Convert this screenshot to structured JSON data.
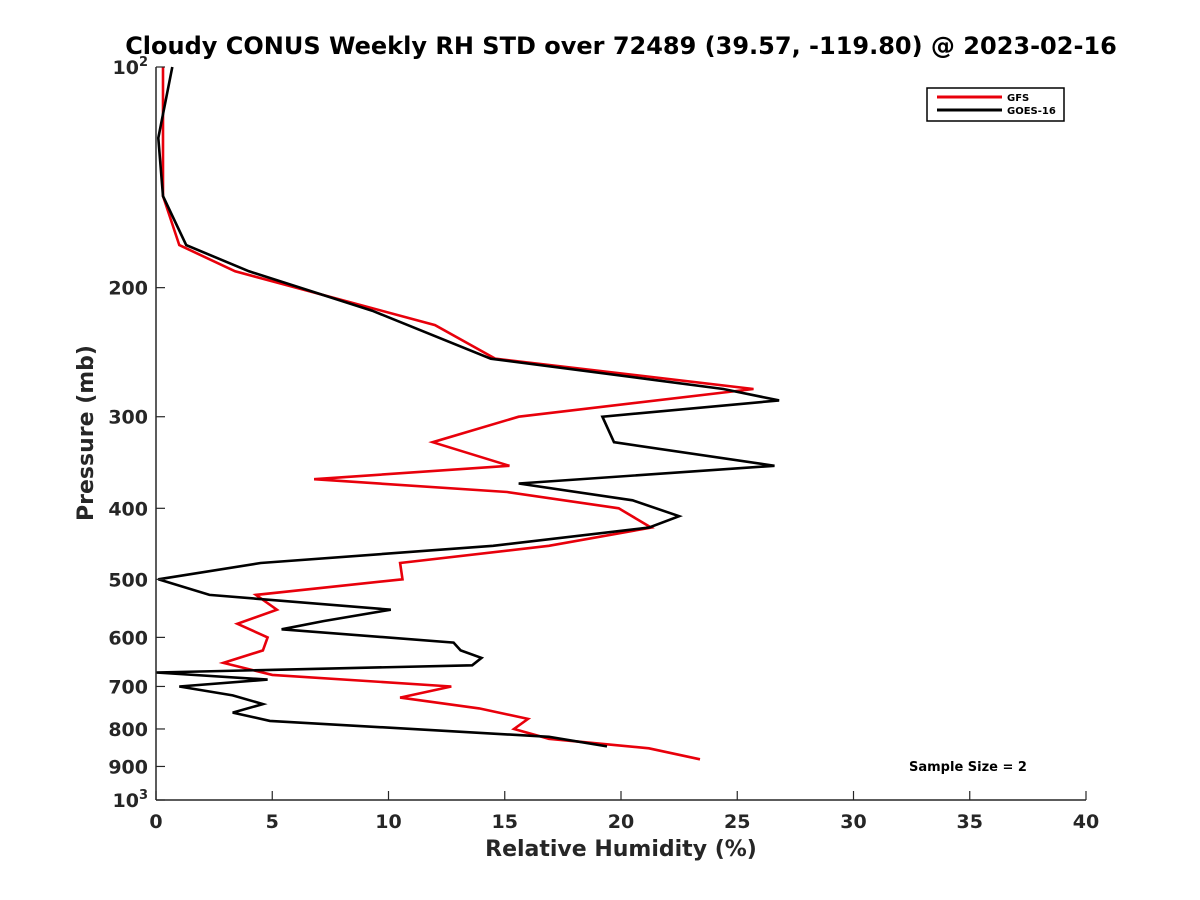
{
  "chart_data": {
    "type": "line",
    "title": "Cloudy CONUS Weekly RH STD over 72489 (39.57, -119.80) @ 2023-02-16",
    "xlabel": "Relative Humidity (%)",
    "ylabel": "Pressure (mb)",
    "xlim": [
      0,
      40
    ],
    "ylim": [
      100,
      1000
    ],
    "yscale": "log",
    "y_reversed": true,
    "grid": false,
    "legend_position": "top-right",
    "x_ticks": [
      0,
      5,
      10,
      15,
      20,
      25,
      30,
      35,
      40
    ],
    "y_ticks": [
      {
        "value": 100,
        "base": "10",
        "exp": "2"
      },
      {
        "value": 200,
        "label": "200"
      },
      {
        "value": 300,
        "label": "300"
      },
      {
        "value": 400,
        "label": "400"
      },
      {
        "value": 500,
        "label": "500"
      },
      {
        "value": 600,
        "label": "600"
      },
      {
        "value": 700,
        "label": "700"
      },
      {
        "value": 800,
        "label": "800"
      },
      {
        "value": 900,
        "label": "900"
      },
      {
        "value": 1000,
        "base": "10",
        "exp": "3"
      }
    ],
    "annotation": "Sample Size = 2",
    "series": [
      {
        "name": "GFS",
        "color": "#e8000b",
        "points": [
          [
            0.3,
            100
          ],
          [
            0.3,
            125
          ],
          [
            0.3,
            150
          ],
          [
            1.0,
            175
          ],
          [
            3.4,
            190
          ],
          [
            12.0,
            225
          ],
          [
            14.6,
            250
          ],
          [
            25.7,
            275
          ],
          [
            15.6,
            300
          ],
          [
            11.9,
            325
          ],
          [
            15.2,
            350
          ],
          [
            6.8,
            365
          ],
          [
            15.1,
            380
          ],
          [
            19.9,
            400
          ],
          [
            21.3,
            425
          ],
          [
            16.9,
            450
          ],
          [
            10.5,
            475
          ],
          [
            10.6,
            500
          ],
          [
            4.3,
            525
          ],
          [
            5.2,
            550
          ],
          [
            3.5,
            575
          ],
          [
            4.8,
            600
          ],
          [
            4.6,
            625
          ],
          [
            2.9,
            650
          ],
          [
            5.0,
            675
          ],
          [
            12.7,
            700
          ],
          [
            10.5,
            725
          ],
          [
            13.9,
            750
          ],
          [
            16.0,
            775
          ],
          [
            15.4,
            800
          ],
          [
            16.9,
            825
          ],
          [
            21.2,
            850
          ],
          [
            23.4,
            880
          ]
        ]
      },
      {
        "name": "GOES-16",
        "color": "#000000",
        "points": [
          [
            0.7,
            100
          ],
          [
            0.1,
            125
          ],
          [
            0.3,
            150
          ],
          [
            1.3,
            175
          ],
          [
            4.0,
            190
          ],
          [
            9.3,
            215
          ],
          [
            14.4,
            250
          ],
          [
            24.4,
            275
          ],
          [
            26.8,
            285
          ],
          [
            19.2,
            300
          ],
          [
            19.7,
            325
          ],
          [
            26.6,
            350
          ],
          [
            15.6,
            370
          ],
          [
            20.5,
            390
          ],
          [
            22.5,
            410
          ],
          [
            21.2,
            425
          ],
          [
            14.5,
            450
          ],
          [
            4.5,
            475
          ],
          [
            0.1,
            500
          ],
          [
            2.3,
            525
          ],
          [
            10.1,
            550
          ],
          [
            7.2,
            570
          ],
          [
            5.4,
            585
          ],
          [
            12.8,
            610
          ],
          [
            13.1,
            625
          ],
          [
            14.0,
            640
          ],
          [
            13.6,
            655
          ],
          [
            0.0,
            670
          ],
          [
            4.8,
            685
          ],
          [
            1.0,
            700
          ],
          [
            3.3,
            720
          ],
          [
            4.6,
            740
          ],
          [
            3.3,
            760
          ],
          [
            4.9,
            780
          ],
          [
            16.9,
            820
          ],
          [
            19.4,
            845
          ]
        ]
      }
    ]
  }
}
